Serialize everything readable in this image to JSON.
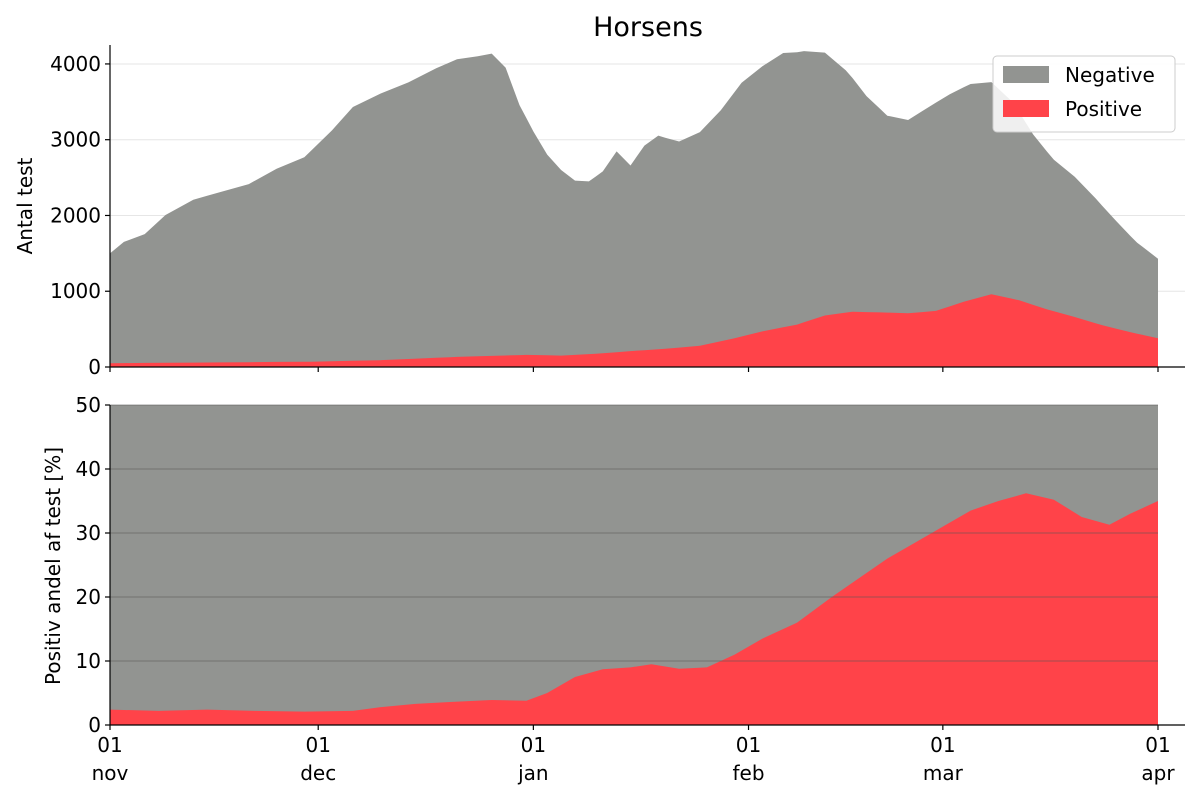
{
  "chart_data": [
    {
      "type": "area",
      "title": "Horsens",
      "ylabel": "Antal test",
      "xlabel": "",
      "ylim": [
        0,
        4250
      ],
      "yticks": [
        0,
        1000,
        2000,
        3000,
        4000
      ],
      "x_range": [
        "2020-11-01",
        "2021-04-01"
      ],
      "stacked": true,
      "grid": "y",
      "legend": "top-right",
      "colors": {
        "Negative": "#929491",
        "Positive": "#ff4349"
      },
      "series": [
        {
          "name": "Negative",
          "points": [
            [
              "2020-11-01",
              1450
            ],
            [
              "2020-11-03",
              1600
            ],
            [
              "2020-11-06",
              1700
            ],
            [
              "2020-11-09",
              1950
            ],
            [
              "2020-11-13",
              2150
            ],
            [
              "2020-11-17",
              2250
            ],
            [
              "2020-11-21",
              2350
            ],
            [
              "2020-11-25",
              2550
            ],
            [
              "2020-11-29",
              2700
            ],
            [
              "2020-12-03",
              3050
            ],
            [
              "2020-12-06",
              3350
            ],
            [
              "2020-12-10",
              3520
            ],
            [
              "2020-12-14",
              3650
            ],
            [
              "2020-12-18",
              3820
            ],
            [
              "2020-12-21",
              3930
            ],
            [
              "2020-12-24",
              3960
            ],
            [
              "2020-12-26",
              3990
            ],
            [
              "2020-12-28",
              3800
            ],
            [
              "2020-12-30",
              3300
            ],
            [
              "2021-01-01",
              2950
            ],
            [
              "2021-01-03",
              2650
            ],
            [
              "2021-01-05",
              2450
            ],
            [
              "2021-01-07",
              2300
            ],
            [
              "2021-01-09",
              2280
            ],
            [
              "2021-01-11",
              2400
            ],
            [
              "2021-01-13",
              2650
            ],
            [
              "2021-01-15",
              2450
            ],
            [
              "2021-01-17",
              2700
            ],
            [
              "2021-01-19",
              2820
            ],
            [
              "2021-01-22",
              2720
            ],
            [
              "2021-01-25",
              2820
            ],
            [
              "2021-01-28",
              3050
            ],
            [
              "2021-01-31",
              3350
            ],
            [
              "2021-02-03",
              3500
            ],
            [
              "2021-02-06",
              3620
            ],
            [
              "2021-02-09",
              3580
            ],
            [
              "2021-02-12",
              3470
            ],
            [
              "2021-02-15",
              3200
            ],
            [
              "2021-02-18",
              2850
            ],
            [
              "2021-02-21",
              2600
            ],
            [
              "2021-02-24",
              2550
            ],
            [
              "2021-02-26",
              2650
            ],
            [
              "2021-02-28",
              2750
            ],
            [
              "2021-03-02",
              2800
            ],
            [
              "2021-03-05",
              2850
            ],
            [
              "2021-03-08",
              2800
            ],
            [
              "2021-03-11",
              2600
            ],
            [
              "2021-03-14",
              2250
            ],
            [
              "2021-03-17",
              2000
            ],
            [
              "2021-03-20",
              1850
            ],
            [
              "2021-03-23",
              1650
            ],
            [
              "2021-03-26",
              1420
            ],
            [
              "2021-03-29",
              1200
            ],
            [
              "2021-04-01",
              1050
            ]
          ]
        },
        {
          "name": "Positive",
          "points": [
            [
              "2020-11-01",
              50
            ],
            [
              "2020-11-15",
              60
            ],
            [
              "2020-11-30",
              70
            ],
            [
              "2020-12-10",
              90
            ],
            [
              "2020-12-20",
              130
            ],
            [
              "2020-12-31",
              160
            ],
            [
              "2021-01-05",
              150
            ],
            [
              "2021-01-10",
              175
            ],
            [
              "2021-01-15",
              210
            ],
            [
              "2021-01-20",
              240
            ],
            [
              "2021-01-25",
              280
            ],
            [
              "2021-01-30",
              380
            ],
            [
              "2021-02-03",
              470
            ],
            [
              "2021-02-08",
              560
            ],
            [
              "2021-02-12",
              680
            ],
            [
              "2021-02-16",
              730
            ],
            [
              "2021-02-20",
              720
            ],
            [
              "2021-02-24",
              710
            ],
            [
              "2021-02-28",
              740
            ],
            [
              "2021-03-04",
              860
            ],
            [
              "2021-03-08",
              960
            ],
            [
              "2021-03-12",
              880
            ],
            [
              "2021-03-16",
              760
            ],
            [
              "2021-03-20",
              660
            ],
            [
              "2021-03-24",
              550
            ],
            [
              "2021-03-28",
              460
            ],
            [
              "2021-04-01",
              380
            ]
          ]
        }
      ]
    },
    {
      "type": "area",
      "title": "",
      "ylabel": "Positiv andel af test [%]",
      "xlabel": "",
      "ylim": [
        0,
        50
      ],
      "yticks": [
        0,
        10,
        20,
        30,
        40,
        50
      ],
      "stacked": true,
      "grid": "y",
      "colors": {
        "Negative": "#929491",
        "Positive": "#ff4349"
      },
      "x_range": [
        "2020-11-01",
        "2021-04-01"
      ],
      "xtick_labels": [
        [
          "01",
          "nov"
        ],
        [
          "01",
          "dec"
        ],
        [
          "01",
          "jan"
        ],
        [
          "01",
          "feb"
        ],
        [
          "01",
          "mar"
        ],
        [
          "01",
          "apr"
        ]
      ],
      "xtick_dates": [
        "2020-11-01",
        "2020-12-01",
        "2021-01-01",
        "2021-02-01",
        "2021-03-01",
        "2021-04-01"
      ],
      "series": [
        {
          "name": "Positive",
          "points": [
            [
              "2020-11-01",
              2.4
            ],
            [
              "2020-11-08",
              2.2
            ],
            [
              "2020-11-15",
              2.4
            ],
            [
              "2020-11-22",
              2.2
            ],
            [
              "2020-11-29",
              2.1
            ],
            [
              "2020-12-06",
              2.2
            ],
            [
              "2020-12-10",
              2.8
            ],
            [
              "2020-12-15",
              3.3
            ],
            [
              "2020-12-20",
              3.6
            ],
            [
              "2020-12-26",
              3.9
            ],
            [
              "2020-12-31",
              3.8
            ],
            [
              "2021-01-03",
              5.0
            ],
            [
              "2021-01-07",
              7.5
            ],
            [
              "2021-01-11",
              8.7
            ],
            [
              "2021-01-15",
              9.0
            ],
            [
              "2021-01-18",
              9.5
            ],
            [
              "2021-01-22",
              8.8
            ],
            [
              "2021-01-26",
              9.0
            ],
            [
              "2021-01-30",
              11.0
            ],
            [
              "2021-02-03",
              13.5
            ],
            [
              "2021-02-08",
              16.0
            ],
            [
              "2021-02-13",
              20.0
            ],
            [
              "2021-02-17",
              23.0
            ],
            [
              "2021-02-21",
              26.0
            ],
            [
              "2021-02-25",
              28.5
            ],
            [
              "2021-03-01",
              31.0
            ],
            [
              "2021-03-05",
              33.5
            ],
            [
              "2021-03-09",
              35.0
            ],
            [
              "2021-03-13",
              36.2
            ],
            [
              "2021-03-17",
              35.2
            ],
            [
              "2021-03-21",
              32.5
            ],
            [
              "2021-03-25",
              31.3
            ],
            [
              "2021-03-28",
              33.0
            ],
            [
              "2021-04-01",
              35.0
            ]
          ]
        },
        {
          "name": "Negative",
          "note_rest_to": 100
        }
      ]
    }
  ]
}
